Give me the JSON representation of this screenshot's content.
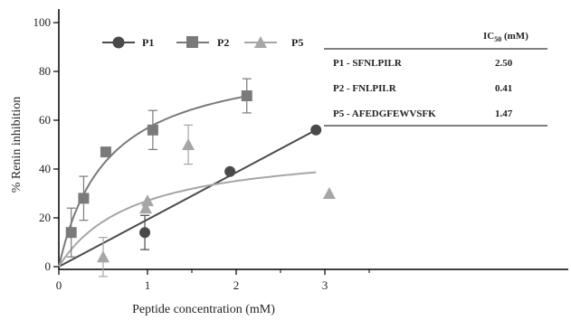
{
  "chart_data": {
    "type": "scatter",
    "xlabel": "Peptide concentration (mM)",
    "ylabel": "% Renin inhibition",
    "xlim": [
      0,
      3.4
    ],
    "ylim": [
      0,
      100
    ],
    "xticks": [
      "0",
      "1",
      "2",
      "3"
    ],
    "yticks": [
      "0",
      "20",
      "40",
      "60",
      "80",
      "100"
    ],
    "legend_position": "top",
    "series": [
      {
        "name": "P1",
        "marker": "circle",
        "color": "#4a4a4a",
        "points": [
          {
            "x": 0.97,
            "y": 14,
            "err": 7
          },
          {
            "x": 1.93,
            "y": 39
          },
          {
            "x": 2.9,
            "y": 56
          }
        ],
        "fit": "linear"
      },
      {
        "name": "P2",
        "marker": "square",
        "color": "#7a7a7a",
        "points": [
          {
            "x": 0.14,
            "y": 14,
            "err": 10
          },
          {
            "x": 0.28,
            "y": 28,
            "err": 9
          },
          {
            "x": 0.53,
            "y": 47
          },
          {
            "x": 1.06,
            "y": 56,
            "err": 8
          },
          {
            "x": 2.12,
            "y": 70,
            "err": 7
          }
        ],
        "fit": "saturation"
      },
      {
        "name": "P5",
        "marker": "triangle",
        "color": "#a6a6a6",
        "points": [
          {
            "x": 0.5,
            "y": 4,
            "err": 8
          },
          {
            "x": 0.98,
            "y": 24
          },
          {
            "x": 1.0,
            "y": 27
          },
          {
            "x": 1.46,
            "y": 50,
            "err": 8
          },
          {
            "x": 3.05,
            "y": 30
          }
        ],
        "fit": "saturation"
      }
    ],
    "table": {
      "header": "IC",
      "header_sub": "50",
      "header_unit": " (mM)",
      "rows": [
        {
          "peptide": "P1 - SFNLPILR",
          "ic50": "2.50"
        },
        {
          "peptide": "P2  - FNLPILR",
          "ic50": "0.41"
        },
        {
          "peptide": "P5 - AFEDGFEWVSFK",
          "ic50": "1.47"
        }
      ]
    }
  }
}
